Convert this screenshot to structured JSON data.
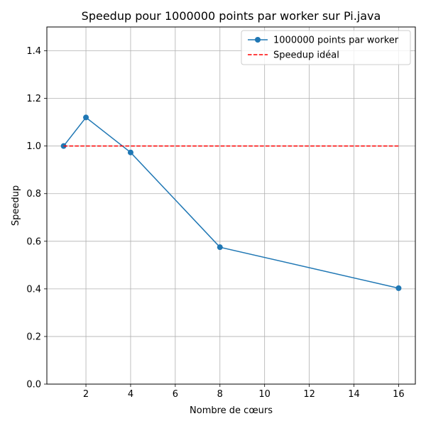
{
  "chart_data": {
    "type": "line",
    "title": "Speedup pour 1000000 points par worker sur Pi.java",
    "xlabel": "Nombre de cœurs",
    "ylabel": "Speedup",
    "xlim": [
      0.25,
      16.75
    ],
    "ylim": [
      0.0,
      1.5
    ],
    "xticks": [
      2,
      4,
      6,
      8,
      10,
      12,
      14,
      16
    ],
    "yticks": [
      0.0,
      0.2,
      0.4,
      0.6,
      0.8,
      1.0,
      1.2,
      1.4
    ],
    "grid": true,
    "legend_position": "top-right",
    "series": [
      {
        "name": "1000000 points par worker",
        "color": "#1f77b4",
        "style": "solid",
        "marker": "circle",
        "x": [
          1,
          2,
          4,
          8,
          16
        ],
        "y": [
          1.0,
          1.12,
          0.973,
          0.575,
          0.403
        ]
      },
      {
        "name": "Speedup idéal",
        "color": "#ff0000",
        "style": "dashed",
        "marker": "none",
        "x": [
          1,
          16
        ],
        "y": [
          1.0,
          1.0
        ]
      }
    ]
  }
}
